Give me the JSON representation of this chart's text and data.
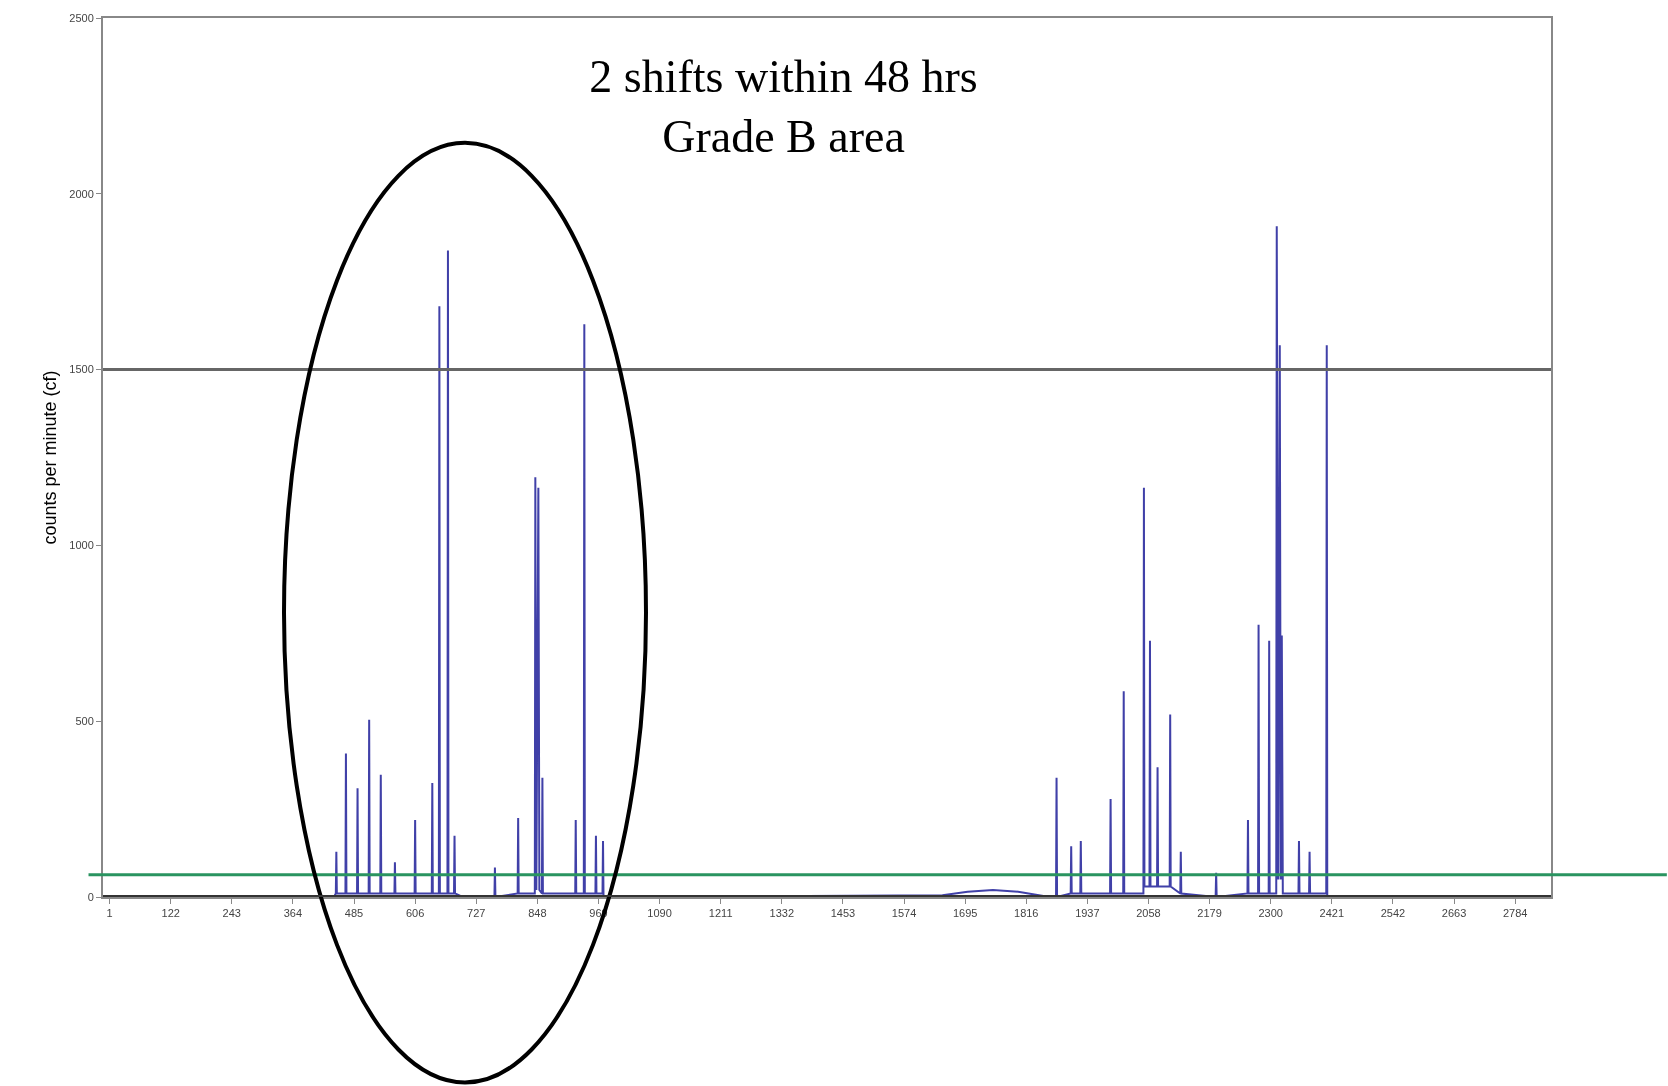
{
  "chart_data": {
    "type": "line",
    "title": "2 shifts within 48 hrs\nGrade B area",
    "ylabel": "counts per minute (cf)",
    "x": [
      1,
      200,
      445,
      449,
      450,
      451,
      468,
      469,
      470,
      491,
      492,
      493,
      514,
      515,
      516,
      537,
      538,
      539,
      565,
      566,
      567,
      605,
      606,
      607,
      639,
      640,
      641,
      653,
      654,
      655,
      670,
      671,
      672,
      683,
      684,
      685,
      700,
      763,
      764,
      765,
      809,
      810,
      811,
      843,
      844,
      846,
      850,
      852,
      857,
      858,
      859,
      923,
      924,
      925,
      940,
      941,
      942,
      963,
      964,
      965,
      977,
      978,
      979,
      1000,
      1650,
      1700,
      1750,
      1800,
      1850,
      1875,
      1876,
      1877,
      1904,
      1905,
      1906,
      1923,
      1924,
      1925,
      1982,
      1983,
      1984,
      2008,
      2009,
      2010,
      2048,
      2049,
      2050,
      2060,
      2061,
      2062,
      2075,
      2076,
      2077,
      2100,
      2101,
      2102,
      2121,
      2122,
      2123,
      2191,
      2192,
      2193,
      2254,
      2255,
      2256,
      2275,
      2276,
      2277,
      2296,
      2297,
      2298,
      2311,
      2312,
      2315,
      2318,
      2320,
      2322,
      2324,
      2355,
      2356,
      2357,
      2376,
      2377,
      2378,
      2410,
      2411,
      2412,
      2450,
      2855
    ],
    "series": [
      {
        "color": "#1f1f99",
        "values": [
          0,
          0,
          0,
          10,
          129,
          10,
          10,
          408,
          10,
          10,
          309,
          10,
          10,
          504,
          10,
          10,
          348,
          10,
          10,
          99,
          10,
          10,
          219,
          10,
          10,
          324,
          10,
          10,
          1680,
          10,
          10,
          1839,
          10,
          10,
          174,
          10,
          0,
          0,
          84,
          0,
          10,
          225,
          10,
          10,
          1194,
          20,
          1164,
          20,
          10,
          339,
          10,
          10,
          219,
          10,
          10,
          1629,
          10,
          10,
          174,
          10,
          10,
          159,
          0,
          0,
          5,
          15,
          20,
          15,
          3,
          0,
          339,
          0,
          10,
          144,
          10,
          10,
          159,
          10,
          10,
          279,
          10,
          10,
          585,
          10,
          10,
          1164,
          30,
          30,
          729,
          30,
          30,
          369,
          30,
          30,
          519,
          30,
          10,
          129,
          10,
          0,
          69,
          0,
          10,
          219,
          10,
          10,
          774,
          10,
          10,
          729,
          10,
          10,
          1908,
          50,
          1569,
          50,
          744,
          10,
          10,
          159,
          10,
          10,
          129,
          10,
          10,
          1569,
          0,
          0,
          0
        ]
      }
    ],
    "xlim": [
      -12,
      2855
    ],
    "xticks": [
      1,
      122,
      243,
      364,
      485,
      606,
      727,
      848,
      969,
      1090,
      1211,
      1332,
      1453,
      1574,
      1695,
      1816,
      1937,
      2058,
      2179,
      2300,
      2421,
      2542,
      2663,
      2784
    ],
    "ylim": [
      0,
      2500
    ],
    "yticks": [
      0,
      500,
      1000,
      1500,
      2000,
      2500
    ],
    "ref_lines": [
      {
        "axis": "y",
        "value": 1500,
        "color": "#666666"
      },
      {
        "axis": "y",
        "value": 63,
        "color": "#2a9460"
      }
    ],
    "legend": false,
    "marker": "none",
    "line_style": "solid"
  }
}
